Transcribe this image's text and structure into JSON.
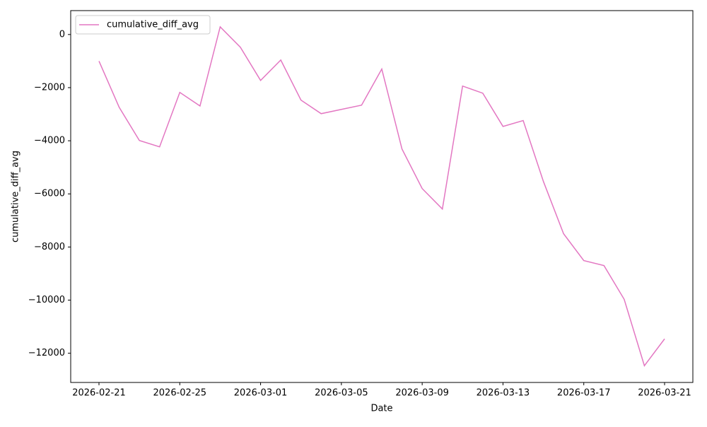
{
  "chart_data": {
    "type": "line",
    "xlabel": "Date",
    "ylabel": "cumulative_diff_avg",
    "x": [
      "2026-02-21",
      "2026-02-22",
      "2026-02-23",
      "2026-02-24",
      "2026-02-25",
      "2026-02-26",
      "2026-02-27",
      "2026-02-28",
      "2026-03-01",
      "2026-03-02",
      "2026-03-03",
      "2026-03-04",
      "2026-03-05",
      "2026-03-06",
      "2026-03-07",
      "2026-03-08",
      "2026-03-09",
      "2026-03-10",
      "2026-03-11",
      "2026-03-12",
      "2026-03-13",
      "2026-03-14",
      "2026-03-15",
      "2026-03-16",
      "2026-03-17",
      "2026-03-18",
      "2026-03-19",
      "2026-03-20",
      "2026-03-21"
    ],
    "series": [
      {
        "name": "cumulative_diff_avg",
        "color": "#e377c2",
        "values": [
          -1000,
          -2740,
          -3990,
          -4230,
          -2180,
          -2690,
          290,
          -480,
          -1730,
          -960,
          -2470,
          -2980,
          -2820,
          -2660,
          -1300,
          -4310,
          -5800,
          -6570,
          -1940,
          -2210,
          -3460,
          -3240,
          -5530,
          -7500,
          -8510,
          -8700,
          -9970,
          -12470,
          -11460
        ]
      }
    ],
    "xlim": [
      "2026-02-19T14:24Z",
      "2026-03-22T09:36Z"
    ],
    "xticks": [
      "2026-02-21",
      "2026-02-25",
      "2026-03-01",
      "2026-03-05",
      "2026-03-09",
      "2026-03-13",
      "2026-03-17",
      "2026-03-21"
    ],
    "ylim": [
      -13100,
      900
    ],
    "yticks": [
      {
        "value": -12000,
        "label": "−12000"
      },
      {
        "value": -10000,
        "label": "−10000"
      },
      {
        "value": -8000,
        "label": "−8000"
      },
      {
        "value": -6000,
        "label": "−6000"
      },
      {
        "value": -4000,
        "label": "−4000"
      },
      {
        "value": -2000,
        "label": "−2000"
      },
      0
    ],
    "grid": false,
    "legend": "upper-left"
  }
}
